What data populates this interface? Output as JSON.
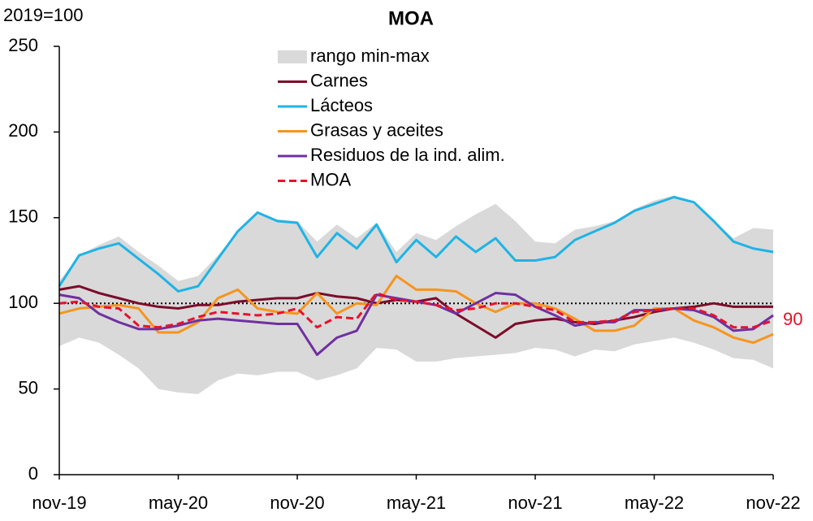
{
  "chart_data": {
    "type": "line",
    "title": "MOA",
    "y_label": "2019=100",
    "categories": [
      "nov-19",
      null,
      null,
      null,
      null,
      null,
      "may-20",
      null,
      null,
      null,
      null,
      null,
      "nov-20",
      null,
      null,
      null,
      null,
      null,
      "may-21",
      null,
      null,
      null,
      null,
      null,
      "nov-21",
      null,
      null,
      null,
      null,
      null,
      "may-22",
      null,
      null,
      null,
      null,
      null,
      "nov-22"
    ],
    "ylim": [
      0,
      250
    ],
    "yticks": [
      0,
      50,
      100,
      150,
      200,
      250
    ],
    "grid": false,
    "legend": "top-center",
    "hline": 100,
    "range": {
      "name": "rango min-max",
      "color": "#d9d9d9",
      "low": [
        75,
        80,
        77,
        70,
        62,
        50,
        48,
        47,
        55,
        59,
        58,
        60,
        60,
        55,
        58,
        62,
        74,
        73,
        66,
        66,
        68,
        69,
        70,
        71,
        74,
        73,
        69,
        73,
        72,
        76,
        78,
        80,
        77,
        73,
        68,
        67,
        62
      ],
      "high": [
        113,
        128,
        134,
        139,
        130,
        122,
        113,
        116,
        128,
        142,
        152,
        149,
        148,
        136,
        146,
        138,
        147,
        130,
        141,
        137,
        145,
        152,
        158,
        148,
        136,
        135,
        143,
        145,
        148,
        155,
        160,
        163,
        158,
        148,
        138,
        144,
        143
      ]
    },
    "series": [
      {
        "name": "Carnes",
        "color": "#7b0c2a",
        "values": [
          108,
          110,
          106,
          103,
          100,
          98,
          97,
          99,
          99,
          101,
          102,
          103,
          103,
          106,
          104,
          103,
          100,
          102,
          101,
          103,
          94,
          87,
          80,
          88,
          90,
          91,
          89,
          88,
          90,
          92,
          95,
          97,
          98,
          100,
          98,
          98,
          98
        ]
      },
      {
        "name": "Lácteos",
        "color": "#1eb4e6",
        "values": [
          110,
          128,
          132,
          135,
          126,
          117,
          107,
          110,
          126,
          142,
          153,
          148,
          147,
          127,
          141,
          132,
          146,
          124,
          137,
          127,
          139,
          130,
          138,
          125,
          125,
          127,
          137,
          142,
          147,
          154,
          158,
          162,
          159,
          148,
          136,
          132,
          130
        ]
      },
      {
        "name": "Grasas y aceites",
        "color": "#f7941d",
        "values": [
          94,
          97,
          98,
          99,
          97,
          83,
          83,
          89,
          103,
          108,
          97,
          95,
          94,
          106,
          94,
          100,
          99,
          116,
          108,
          108,
          107,
          100,
          95,
          100,
          100,
          97,
          91,
          84,
          84,
          87,
          97,
          97,
          90,
          86,
          80,
          77,
          82
        ]
      },
      {
        "name": "Residuos de la ind. alim.",
        "color": "#7030a0",
        "values": [
          105,
          103,
          94,
          89,
          85,
          85,
          87,
          90,
          91,
          90,
          89,
          88,
          88,
          70,
          80,
          84,
          105,
          103,
          101,
          99,
          94,
          100,
          106,
          105,
          98,
          93,
          87,
          89,
          89,
          96,
          96,
          97,
          96,
          92,
          84,
          85,
          93
        ]
      },
      {
        "name": "MOA",
        "color": "#e8112d",
        "dashed": true,
        "values": [
          100,
          101,
          98,
          97,
          87,
          86,
          88,
          92,
          95,
          94,
          93,
          94,
          97,
          86,
          92,
          91,
          106,
          102,
          101,
          99,
          96,
          97,
          100,
          100,
          98,
          96,
          89,
          89,
          90,
          95,
          96,
          97,
          97,
          93,
          86,
          86,
          90
        ]
      }
    ]
  }
}
